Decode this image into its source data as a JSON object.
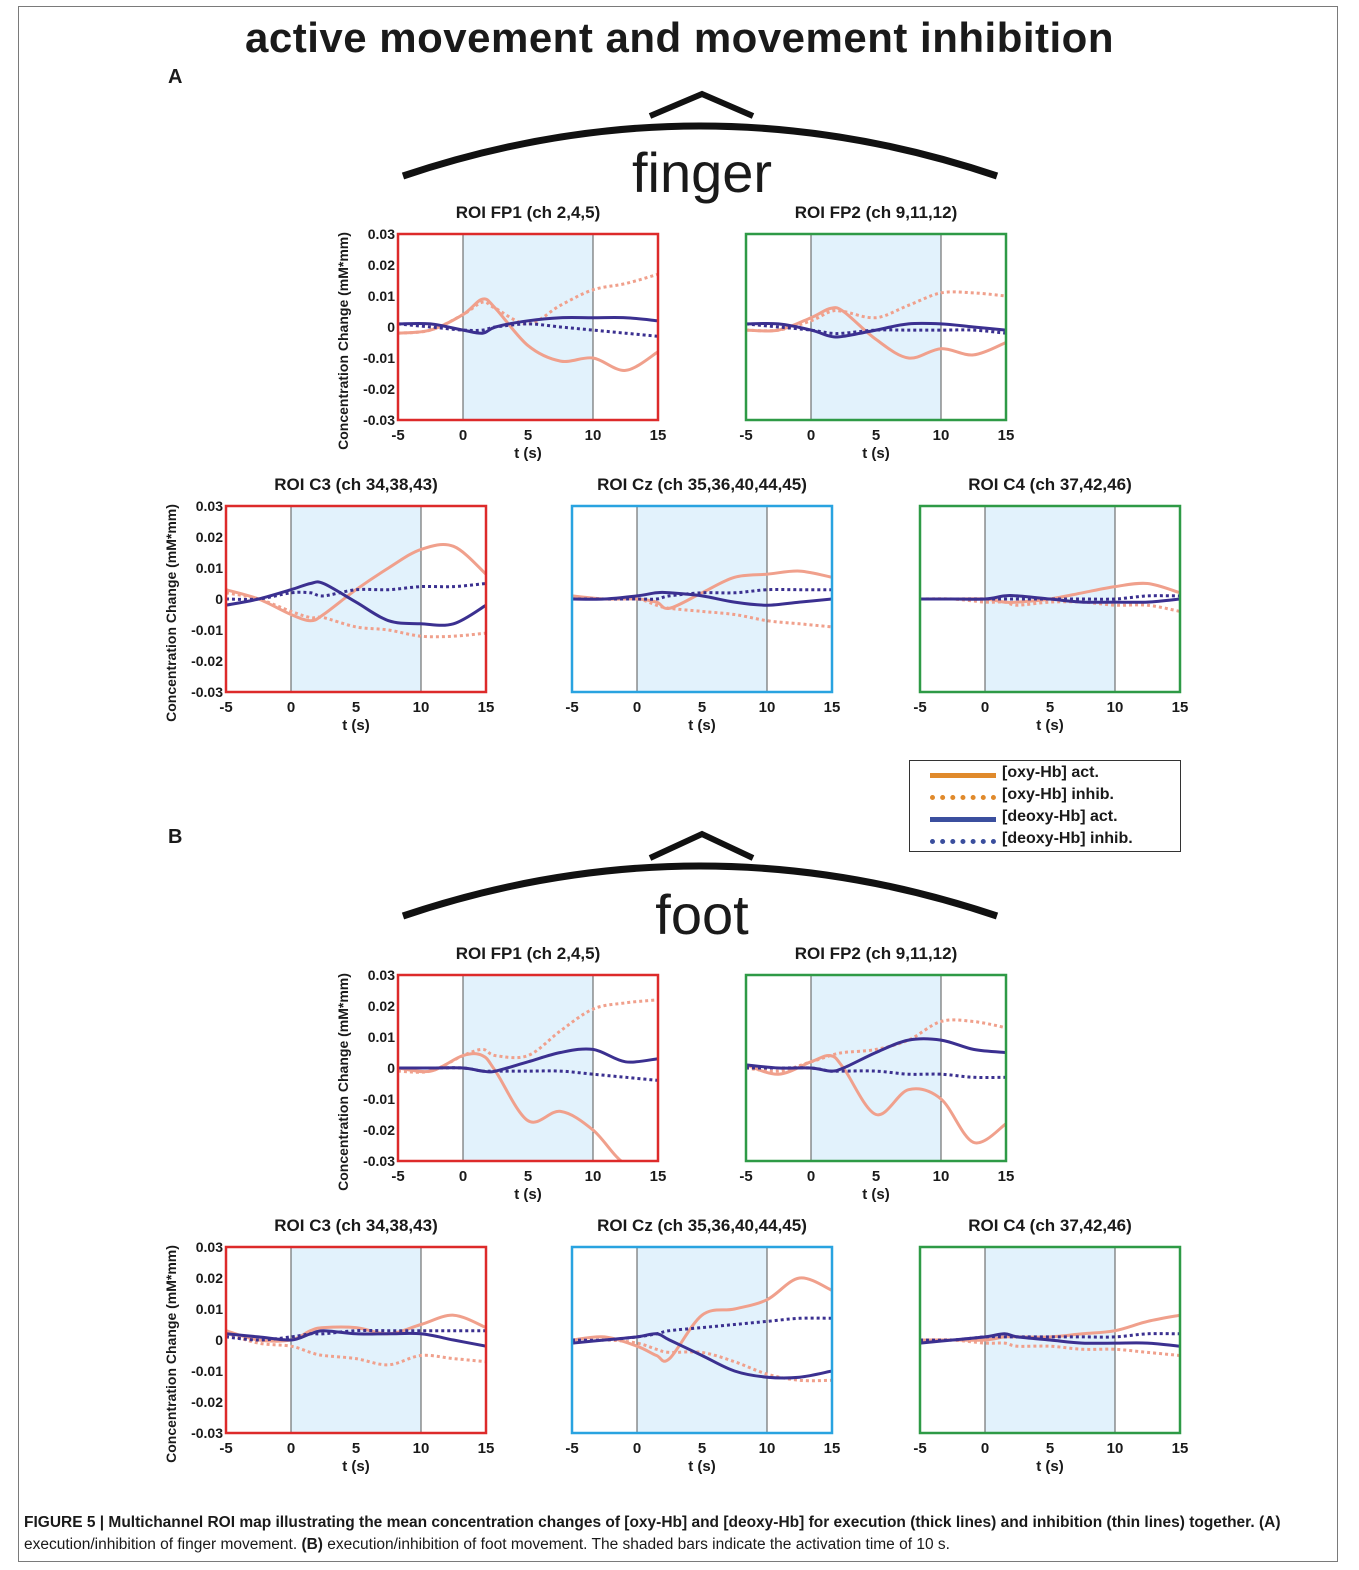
{
  "figure": {
    "title": "active movement and movement inhibition",
    "panels": [
      {
        "letter": "A",
        "head_label": "finger"
      },
      {
        "letter": "B",
        "head_label": "foot"
      }
    ],
    "caption": {
      "bold_lead": "FIGURE 5 | Multichannel ROI map illustrating the mean concentration changes of [oxy-Hb] and [deoxy-Hb] for execution (thick lines) and inhibition (thin lines) together.",
      "a_label": "(A)",
      "a_text": " execution/inhibition of finger movement. ",
      "b_label": "(B)",
      "b_text": " execution/inhibition of foot movement. The shaded bars indicate the activation time of 10 s."
    },
    "legend": [
      {
        "label": "[oxy-Hb] act.",
        "color": "#e08a2c",
        "style": "solid"
      },
      {
        "label": "[oxy-Hb] inhib.",
        "color": "#e08a2c",
        "style": "dotted"
      },
      {
        "label": "[deoxy-Hb] act.",
        "color": "#3b4f9e",
        "style": "solid"
      },
      {
        "label": "[deoxy-Hb] inhib.",
        "color": "#3b4f9e",
        "style": "dotted"
      }
    ],
    "colors": {
      "red_frame": "#dd2a2a",
      "green_frame": "#2e9a46",
      "blue_frame": "#29a3e0",
      "shade": "#e2f2fc",
      "oxy_curve": "#f0a08c",
      "deoxy_curve": "#3b3090"
    }
  },
  "chart_data": [
    {
      "type": "line",
      "panel": "A",
      "title": "ROI FP1 (ch 2,4,5)",
      "xlabel": "t (s)",
      "ylabel": "Concentration Change (mM*mm)",
      "frame": "red",
      "xlim": [
        -5,
        15
      ],
      "ylim": [
        -0.03,
        0.03
      ],
      "xticks": [
        "-5",
        "0",
        "5",
        "10",
        "15"
      ],
      "yticks": [
        "0.03",
        "0.02",
        "0.01",
        "0",
        "-0.01",
        "-0.02",
        "-0.03"
      ],
      "shade": [
        0,
        10
      ],
      "show_ylabel": true,
      "x": [
        -5,
        -2.5,
        0,
        1.5,
        2.5,
        5,
        7.5,
        10,
        12.5,
        15
      ],
      "series": [
        {
          "name": "[oxy-Hb] act.",
          "values": [
            -0.002,
            -0.001,
            0.004,
            0.009,
            0.006,
            -0.006,
            -0.011,
            -0.01,
            -0.014,
            -0.008
          ]
        },
        {
          "name": "[oxy-Hb] inhib.",
          "values": [
            -0.002,
            -0.001,
            0.004,
            0.008,
            0.006,
            0.001,
            0.007,
            0.012,
            0.014,
            0.017
          ]
        },
        {
          "name": "[deoxy-Hb] act.",
          "values": [
            0.001,
            0.001,
            -0.001,
            -0.002,
            0,
            0.002,
            0.003,
            0.003,
            0.003,
            0.002
          ]
        },
        {
          "name": "[deoxy-Hb] inhib.",
          "values": [
            0.001,
            0,
            -0.001,
            -0.001,
            0,
            0.001,
            0,
            -0.001,
            -0.002,
            -0.003
          ]
        }
      ]
    },
    {
      "type": "line",
      "panel": "A",
      "title": "ROI FP2 (ch 9,11,12)",
      "xlabel": "t (s)",
      "ylabel": "",
      "frame": "green",
      "xlim": [
        -5,
        15
      ],
      "ylim": [
        -0.03,
        0.03
      ],
      "xticks": [
        "-5",
        "0",
        "5",
        "10",
        "15"
      ],
      "yticks": [],
      "shade": [
        0,
        10
      ],
      "show_ylabel": false,
      "x": [
        -5,
        -2.5,
        0,
        1.5,
        2.5,
        5,
        7.5,
        10,
        12.5,
        15
      ],
      "series": [
        {
          "name": "[oxy-Hb] act.",
          "values": [
            -0.001,
            -0.001,
            0.003,
            0.006,
            0.005,
            -0.004,
            -0.01,
            -0.007,
            -0.009,
            -0.005
          ]
        },
        {
          "name": "[oxy-Hb] inhib.",
          "values": [
            -0.001,
            -0.001,
            0.002,
            0.005,
            0.005,
            0.003,
            0.007,
            0.011,
            0.011,
            0.01
          ]
        },
        {
          "name": "[deoxy-Hb] act.",
          "values": [
            0.001,
            0.001,
            -0.001,
            -0.003,
            -0.003,
            -0.001,
            0.001,
            0.001,
            0,
            -0.001
          ]
        },
        {
          "name": "[deoxy-Hb] inhib.",
          "values": [
            0.001,
            0,
            -0.001,
            -0.002,
            -0.002,
            -0.001,
            -0.001,
            -0.001,
            -0.001,
            -0.002
          ]
        }
      ]
    },
    {
      "type": "line",
      "panel": "A",
      "title": "ROI C3 (ch 34,38,43)",
      "xlabel": "t (s)",
      "ylabel": "Concentration Change (mM*mm)",
      "frame": "red",
      "xlim": [
        -5,
        15
      ],
      "ylim": [
        -0.03,
        0.03
      ],
      "xticks": [
        "-5",
        "0",
        "5",
        "10",
        "15"
      ],
      "yticks": [
        "0.03",
        "0.02",
        "0.01",
        "0",
        "-0.01",
        "-0.02",
        "-0.03"
      ],
      "shade": [
        0,
        10
      ],
      "show_ylabel": true,
      "x": [
        -5,
        -2.5,
        0,
        1.5,
        2.5,
        5,
        7.5,
        10,
        12.5,
        15
      ],
      "series": [
        {
          "name": "[oxy-Hb] act.",
          "values": [
            0.003,
            0,
            -0.005,
            -0.007,
            -0.005,
            0.003,
            0.01,
            0.016,
            0.017,
            0.008
          ]
        },
        {
          "name": "[oxy-Hb] inhib.",
          "values": [
            0.002,
            0,
            -0.004,
            -0.006,
            -0.006,
            -0.009,
            -0.01,
            -0.012,
            -0.012,
            -0.011
          ]
        },
        {
          "name": "[deoxy-Hb] act.",
          "values": [
            -0.002,
            0,
            0.003,
            0.005,
            0.005,
            -0.001,
            -0.007,
            -0.008,
            -0.008,
            -0.002
          ]
        },
        {
          "name": "[deoxy-Hb] inhib.",
          "values": [
            0,
            0,
            0.002,
            0.002,
            0.001,
            0.003,
            0.003,
            0.004,
            0.004,
            0.005
          ]
        }
      ]
    },
    {
      "type": "line",
      "panel": "A",
      "title": "ROI Cz (ch 35,36,40,44,45)",
      "xlabel": "t (s)",
      "ylabel": "",
      "frame": "blue",
      "xlim": [
        -5,
        15
      ],
      "ylim": [
        -0.03,
        0.03
      ],
      "xticks": [
        "-5",
        "0",
        "5",
        "10",
        "15"
      ],
      "yticks": [],
      "shade": [
        0,
        10
      ],
      "show_ylabel": false,
      "x": [
        -5,
        -2.5,
        0,
        1.5,
        2.5,
        5,
        7.5,
        10,
        12.5,
        15
      ],
      "series": [
        {
          "name": "[oxy-Hb] act.",
          "values": [
            0.001,
            0,
            0,
            -0.001,
            -0.003,
            0.002,
            0.007,
            0.008,
            0.009,
            0.007
          ]
        },
        {
          "name": "[oxy-Hb] inhib.",
          "values": [
            0,
            0,
            0,
            -0.002,
            -0.003,
            -0.004,
            -0.005,
            -0.007,
            -0.008,
            -0.009
          ]
        },
        {
          "name": "[deoxy-Hb] act.",
          "values": [
            0,
            0,
            0.001,
            0.002,
            0.002,
            0.001,
            -0.001,
            -0.002,
            -0.001,
            0
          ]
        },
        {
          "name": "[deoxy-Hb] inhib.",
          "values": [
            0,
            0,
            0,
            0,
            0.001,
            0.002,
            0.002,
            0.003,
            0.003,
            0.003
          ]
        }
      ]
    },
    {
      "type": "line",
      "panel": "A",
      "title": "ROI C4 (ch 37,42,46)",
      "xlabel": "t (s)",
      "ylabel": "",
      "frame": "green",
      "xlim": [
        -5,
        15
      ],
      "ylim": [
        -0.03,
        0.03
      ],
      "xticks": [
        "-5",
        "0",
        "5",
        "10",
        "15"
      ],
      "yticks": [],
      "shade": [
        0,
        10
      ],
      "show_ylabel": false,
      "x": [
        -5,
        -2.5,
        0,
        1.5,
        2.5,
        5,
        7.5,
        10,
        12.5,
        15
      ],
      "series": [
        {
          "name": "[oxy-Hb] act.",
          "values": [
            0,
            0,
            0,
            -0.001,
            -0.001,
            0,
            0.002,
            0.004,
            0.005,
            0.002
          ]
        },
        {
          "name": "[oxy-Hb] inhib.",
          "values": [
            0,
            0,
            -0.001,
            -0.001,
            -0.002,
            -0.001,
            -0.001,
            -0.002,
            -0.002,
            -0.004
          ]
        },
        {
          "name": "[deoxy-Hb] act.",
          "values": [
            0,
            0,
            0,
            0.001,
            0.001,
            0,
            -0.001,
            -0.001,
            -0.001,
            0
          ]
        },
        {
          "name": "[deoxy-Hb] inhib.",
          "values": [
            0,
            0,
            0,
            0,
            0,
            0,
            0,
            0,
            0.001,
            0.001
          ]
        }
      ]
    },
    {
      "type": "line",
      "panel": "B",
      "title": "ROI FP1 (ch 2,4,5)",
      "xlabel": "t (s)",
      "ylabel": "Concentration Change (mM*mm)",
      "frame": "red",
      "xlim": [
        -5,
        15
      ],
      "ylim": [
        -0.03,
        0.03
      ],
      "xticks": [
        "-5",
        "0",
        "5",
        "10",
        "15"
      ],
      "yticks": [
        "0.03",
        "0.02",
        "0.01",
        "0",
        "-0.01",
        "-0.02",
        "-0.03"
      ],
      "shade": [
        0,
        10
      ],
      "show_ylabel": true,
      "x": [
        -5,
        -2.5,
        0,
        1.5,
        2.5,
        5,
        7.5,
        10,
        12.5,
        15
      ],
      "series": [
        {
          "name": "[oxy-Hb] act.",
          "values": [
            0,
            -0.001,
            0.004,
            0.004,
            -0.001,
            -0.017,
            -0.014,
            -0.02,
            -0.031,
            -0.031
          ]
        },
        {
          "name": "[oxy-Hb] inhib.",
          "values": [
            -0.001,
            -0.001,
            0.004,
            0.006,
            0.004,
            0.004,
            0.012,
            0.019,
            0.021,
            0.022
          ]
        },
        {
          "name": "[deoxy-Hb] act.",
          "values": [
            0,
            0,
            0,
            -0.001,
            -0.001,
            0.002,
            0.005,
            0.006,
            0.002,
            0.003
          ]
        },
        {
          "name": "[deoxy-Hb] inhib.",
          "values": [
            0,
            0,
            0,
            -0.001,
            -0.001,
            -0.001,
            -0.001,
            -0.002,
            -0.003,
            -0.004
          ]
        }
      ]
    },
    {
      "type": "line",
      "panel": "B",
      "title": "ROI FP2 (ch 9,11,12)",
      "xlabel": "t (s)",
      "ylabel": "",
      "frame": "green",
      "xlim": [
        -5,
        15
      ],
      "ylim": [
        -0.03,
        0.03
      ],
      "xticks": [
        "-5",
        "0",
        "5",
        "10",
        "15"
      ],
      "yticks": [],
      "shade": [
        0,
        10
      ],
      "show_ylabel": false,
      "x": [
        -5,
        -2.5,
        0,
        1.5,
        2.5,
        5,
        7.5,
        10,
        12.5,
        15
      ],
      "series": [
        {
          "name": "[oxy-Hb] act.",
          "values": [
            0.001,
            -0.002,
            0.002,
            0.004,
            0,
            -0.015,
            -0.007,
            -0.01,
            -0.024,
            -0.018
          ]
        },
        {
          "name": "[oxy-Hb] inhib.",
          "values": [
            0,
            -0.001,
            0.002,
            0.004,
            0.005,
            0.006,
            0.009,
            0.015,
            0.015,
            0.013
          ]
        },
        {
          "name": "[deoxy-Hb] act.",
          "values": [
            0.001,
            0,
            0,
            -0.001,
            0,
            0.005,
            0.009,
            0.009,
            0.006,
            0.005
          ]
        },
        {
          "name": "[deoxy-Hb] inhib.",
          "values": [
            0,
            0,
            0,
            -0.001,
            -0.001,
            -0.001,
            -0.002,
            -0.002,
            -0.003,
            -0.003
          ]
        }
      ]
    },
    {
      "type": "line",
      "panel": "B",
      "title": "ROI C3 (ch 34,38,43)",
      "xlabel": "t (s)",
      "ylabel": "Concentration Change (mM*mm)",
      "frame": "red",
      "xlim": [
        -5,
        15
      ],
      "ylim": [
        -0.03,
        0.03
      ],
      "xticks": [
        "-5",
        "0",
        "5",
        "10",
        "15"
      ],
      "yticks": [
        "0.03",
        "0.02",
        "0.01",
        "0",
        "-0.01",
        "-0.02",
        "-0.03"
      ],
      "shade": [
        0,
        10
      ],
      "show_ylabel": true,
      "x": [
        -5,
        -2.5,
        0,
        1.5,
        2.5,
        5,
        7.5,
        10,
        12.5,
        15
      ],
      "series": [
        {
          "name": "[oxy-Hb] act.",
          "values": [
            0.003,
            0,
            0,
            0.003,
            0.004,
            0.004,
            0.002,
            0.005,
            0.008,
            0.004
          ]
        },
        {
          "name": "[oxy-Hb] inhib.",
          "values": [
            0.002,
            -0.001,
            -0.002,
            -0.004,
            -0.005,
            -0.006,
            -0.008,
            -0.005,
            -0.006,
            -0.007
          ]
        },
        {
          "name": "[deoxy-Hb] act.",
          "values": [
            0.002,
            0.001,
            0,
            0.002,
            0.003,
            0.002,
            0.002,
            0.002,
            0,
            -0.002
          ]
        },
        {
          "name": "[deoxy-Hb] inhib.",
          "values": [
            0.001,
            0,
            0.001,
            0.002,
            0.002,
            0.003,
            0.003,
            0.003,
            0.003,
            0.003
          ]
        }
      ]
    },
    {
      "type": "line",
      "panel": "B",
      "title": "ROI Cz (ch 35,36,40,44,45)",
      "xlabel": "t (s)",
      "ylabel": "",
      "frame": "blue",
      "xlim": [
        -5,
        15
      ],
      "ylim": [
        -0.03,
        0.03
      ],
      "xticks": [
        "-5",
        "0",
        "5",
        "10",
        "15"
      ],
      "yticks": [],
      "shade": [
        0,
        10
      ],
      "show_ylabel": false,
      "x": [
        -5,
        -2.5,
        0,
        1.5,
        2.5,
        5,
        7.5,
        10,
        12.5,
        15
      ],
      "series": [
        {
          "name": "[oxy-Hb] act.",
          "values": [
            0,
            0.001,
            -0.002,
            -0.005,
            -0.006,
            0.008,
            0.01,
            0.013,
            0.02,
            0.016
          ]
        },
        {
          "name": "[oxy-Hb] inhib.",
          "values": [
            -0.001,
            0,
            -0.001,
            -0.003,
            -0.004,
            -0.004,
            -0.007,
            -0.011,
            -0.013,
            -0.013
          ]
        },
        {
          "name": "[deoxy-Hb] act.",
          "values": [
            -0.001,
            0,
            0.001,
            0.002,
            0,
            -0.005,
            -0.01,
            -0.012,
            -0.012,
            -0.01
          ]
        },
        {
          "name": "[deoxy-Hb] inhib.",
          "values": [
            0,
            0,
            0.001,
            0.002,
            0.003,
            0.004,
            0.005,
            0.006,
            0.007,
            0.007
          ]
        }
      ]
    },
    {
      "type": "line",
      "panel": "B",
      "title": "ROI C4 (ch 37,42,46)",
      "xlabel": "t (s)",
      "ylabel": "",
      "frame": "green",
      "xlim": [
        -5,
        15
      ],
      "ylim": [
        -0.03,
        0.03
      ],
      "xticks": [
        "-5",
        "0",
        "5",
        "10",
        "15"
      ],
      "yticks": [],
      "shade": [
        0,
        10
      ],
      "show_ylabel": false,
      "x": [
        -5,
        -2.5,
        0,
        1.5,
        2.5,
        5,
        7.5,
        10,
        12.5,
        15
      ],
      "series": [
        {
          "name": "[oxy-Hb] act.",
          "values": [
            0,
            0,
            0,
            0.001,
            0.001,
            0.001,
            0.002,
            0.003,
            0.006,
            0.008
          ]
        },
        {
          "name": "[oxy-Hb] inhib.",
          "values": [
            0,
            0,
            -0.001,
            -0.001,
            -0.002,
            -0.002,
            -0.003,
            -0.003,
            -0.004,
            -0.005
          ]
        },
        {
          "name": "[deoxy-Hb] act.",
          "values": [
            -0.001,
            0,
            0.001,
            0.002,
            0.001,
            0,
            -0.001,
            -0.001,
            -0.001,
            -0.002
          ]
        },
        {
          "name": "[deoxy-Hb] inhib.",
          "values": [
            0,
            0,
            0.001,
            0.001,
            0.001,
            0.001,
            0.001,
            0.001,
            0.002,
            0.002
          ]
        }
      ]
    }
  ]
}
